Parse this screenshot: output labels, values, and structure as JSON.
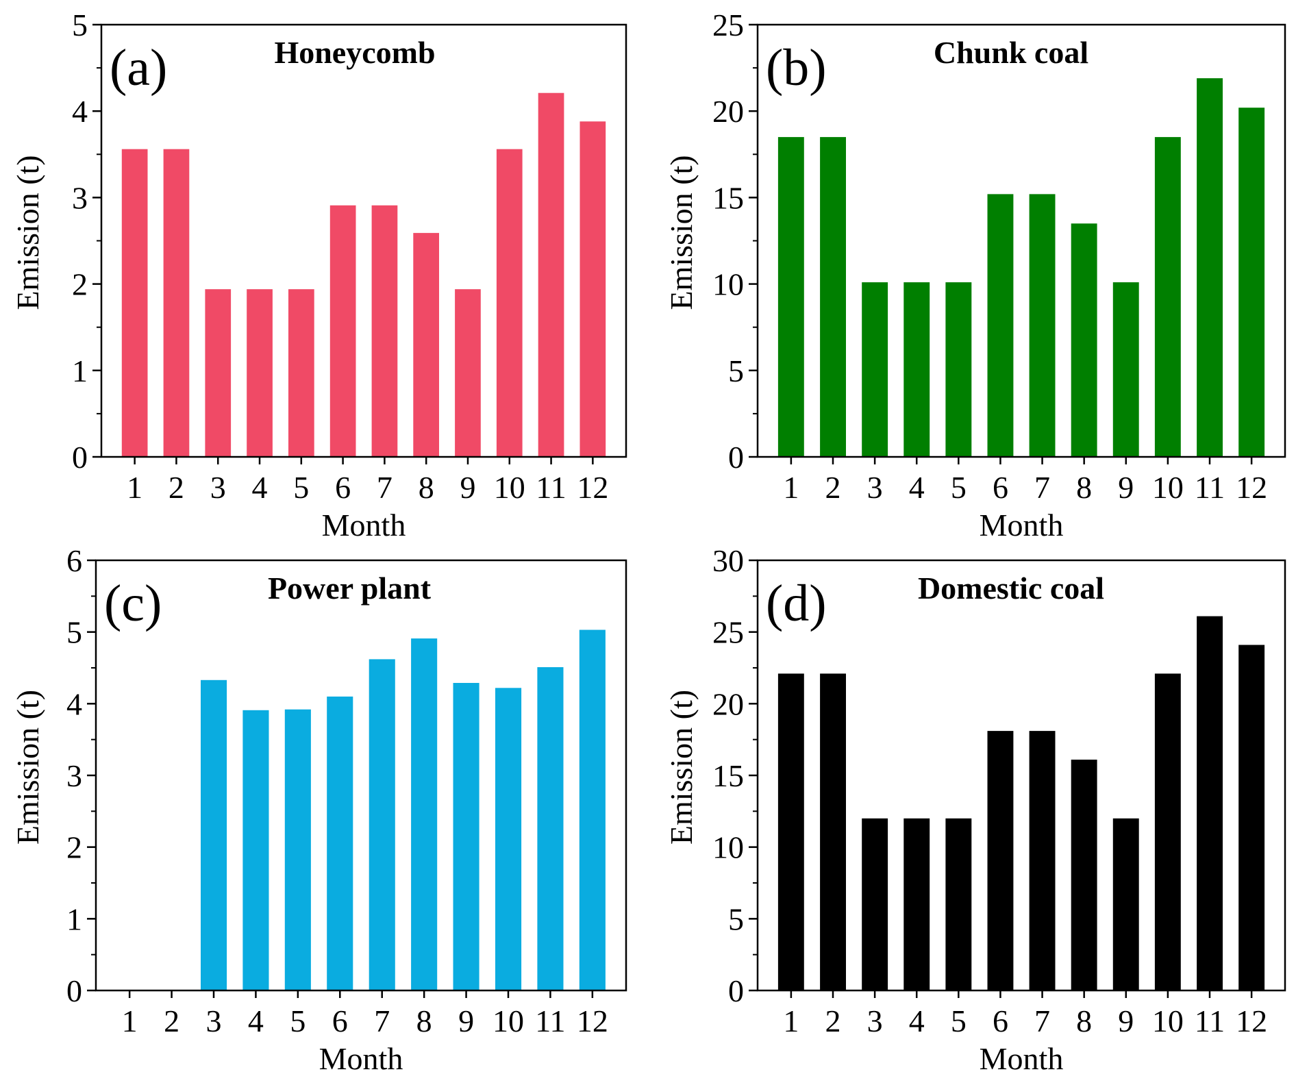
{
  "figure": {
    "month_label": "Month",
    "emission_label": "Emission (t)"
  },
  "chart_data": [
    {
      "type": "bar",
      "panel_label": "(a)",
      "title": "Honeycomb",
      "xlabel": "Month",
      "ylabel": "Emission (t)",
      "categories": [
        "1",
        "2",
        "3",
        "4",
        "5",
        "6",
        "7",
        "8",
        "9",
        "10",
        "11",
        "12"
      ],
      "values": [
        3.56,
        3.56,
        1.94,
        1.94,
        1.94,
        2.91,
        2.91,
        2.59,
        1.94,
        3.56,
        4.21,
        3.88
      ],
      "ylim": [
        0,
        5
      ],
      "yticks": [
        0,
        1,
        2,
        3,
        4,
        5
      ],
      "color": "#f04a66"
    },
    {
      "type": "bar",
      "panel_label": "(b)",
      "title": "Chunk coal",
      "xlabel": "Month",
      "ylabel": "Emission (t)",
      "categories": [
        "1",
        "2",
        "3",
        "4",
        "5",
        "6",
        "7",
        "8",
        "9",
        "10",
        "11",
        "12"
      ],
      "values": [
        18.5,
        18.5,
        10.1,
        10.1,
        10.1,
        15.2,
        15.2,
        13.5,
        10.1,
        18.5,
        21.9,
        20.2
      ],
      "ylim": [
        0,
        25
      ],
      "yticks": [
        0,
        5,
        10,
        15,
        20,
        25
      ],
      "color": "#007f00"
    },
    {
      "type": "bar",
      "panel_label": "(c)",
      "title": "Power plant",
      "xlabel": "Month",
      "ylabel": "Emission (t)",
      "categories": [
        "1",
        "2",
        "3",
        "4",
        "5",
        "6",
        "7",
        "8",
        "9",
        "10",
        "11",
        "12"
      ],
      "values": [
        0,
        0,
        4.33,
        3.91,
        3.92,
        4.1,
        4.62,
        4.91,
        4.29,
        4.22,
        4.51,
        5.03
      ],
      "ylim": [
        0,
        6
      ],
      "yticks": [
        0,
        1,
        2,
        3,
        4,
        5,
        6
      ],
      "color": "#0aace0"
    },
    {
      "type": "bar",
      "panel_label": "(d)",
      "title": "Domestic coal",
      "xlabel": "Month",
      "ylabel": "Emission (t)",
      "categories": [
        "1",
        "2",
        "3",
        "4",
        "5",
        "6",
        "7",
        "8",
        "9",
        "10",
        "11",
        "12"
      ],
      "values": [
        22.1,
        22.1,
        12.0,
        12.0,
        12.0,
        18.1,
        18.1,
        16.1,
        12.0,
        22.1,
        26.1,
        24.1
      ],
      "ylim": [
        0,
        30
      ],
      "yticks": [
        0,
        5,
        10,
        15,
        20,
        25,
        30
      ],
      "color": "#000000"
    }
  ]
}
